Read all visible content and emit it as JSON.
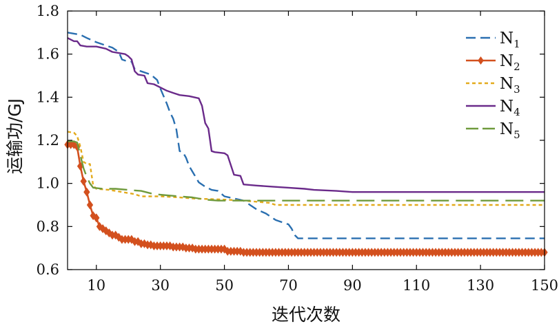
{
  "chart_data": {
    "type": "line",
    "title": "",
    "xlabel": "迭代次数",
    "ylabel": "运输功/GJ",
    "xlim": [
      1,
      150
    ],
    "ylim": [
      0.6,
      1.8
    ],
    "xticks": [
      10,
      30,
      50,
      70,
      90,
      110,
      130,
      150
    ],
    "xtick_labels": [
      "10",
      "30",
      "50",
      "70",
      "90",
      "110",
      "130",
      "150"
    ],
    "yticks": [
      0.6,
      0.8,
      1.0,
      1.2,
      1.4,
      1.6,
      1.8
    ],
    "ytick_labels": [
      "0.6",
      "0.8",
      "1.0",
      "1.2",
      "1.4",
      "1.6",
      "1.8"
    ],
    "grid": false,
    "legend_position": "top-right",
    "series": [
      {
        "name": "N1",
        "label_main": "N",
        "label_sub": "1",
        "color": "#2a6fb0",
        "dash": "14,7",
        "marker": "none",
        "points": [
          [
            1,
            1.7
          ],
          [
            3,
            1.695
          ],
          [
            5,
            1.69
          ],
          [
            7,
            1.675
          ],
          [
            10,
            1.655
          ],
          [
            13,
            1.64
          ],
          [
            15,
            1.63
          ],
          [
            17,
            1.61
          ],
          [
            18,
            1.575
          ],
          [
            19,
            1.57
          ],
          [
            21,
            1.565
          ],
          [
            22,
            1.53
          ],
          [
            24,
            1.52
          ],
          [
            27,
            1.505
          ],
          [
            29,
            1.48
          ],
          [
            30,
            1.44
          ],
          [
            32,
            1.37
          ],
          [
            33,
            1.33
          ],
          [
            34,
            1.3
          ],
          [
            35,
            1.25
          ],
          [
            36,
            1.15
          ],
          [
            37,
            1.145
          ],
          [
            38,
            1.12
          ],
          [
            39,
            1.08
          ],
          [
            41,
            1.03
          ],
          [
            42,
            1.005
          ],
          [
            44,
            0.985
          ],
          [
            46,
            0.97
          ],
          [
            48,
            0.965
          ],
          [
            50,
            0.94
          ],
          [
            53,
            0.93
          ],
          [
            56,
            0.92
          ],
          [
            58,
            0.9
          ],
          [
            60,
            0.88
          ],
          [
            63,
            0.86
          ],
          [
            66,
            0.83
          ],
          [
            68,
            0.82
          ],
          [
            70,
            0.81
          ],
          [
            71,
            0.79
          ],
          [
            72,
            0.76
          ],
          [
            73,
            0.745
          ],
          [
            150,
            0.745
          ]
        ]
      },
      {
        "name": "N2",
        "label_main": "N",
        "label_sub": "2",
        "color": "#d3501e",
        "dash": "",
        "marker": "diamond",
        "points": [
          [
            1,
            1.18
          ],
          [
            2,
            1.18
          ],
          [
            3,
            1.18
          ],
          [
            4,
            1.17
          ],
          [
            5,
            1.08
          ],
          [
            6,
            1.01
          ],
          [
            7,
            0.96
          ],
          [
            8,
            0.9
          ],
          [
            9,
            0.85
          ],
          [
            10,
            0.84
          ],
          [
            11,
            0.8
          ],
          [
            12,
            0.79
          ],
          [
            13,
            0.78
          ],
          [
            14,
            0.77
          ],
          [
            15,
            0.76
          ],
          [
            16,
            0.76
          ],
          [
            17,
            0.75
          ],
          [
            18,
            0.74
          ],
          [
            19,
            0.74
          ],
          [
            20,
            0.74
          ],
          [
            21,
            0.74
          ],
          [
            22,
            0.73
          ],
          [
            23,
            0.73
          ],
          [
            24,
            0.72
          ],
          [
            25,
            0.72
          ],
          [
            26,
            0.715
          ],
          [
            27,
            0.715
          ],
          [
            28,
            0.71
          ],
          [
            29,
            0.71
          ],
          [
            30,
            0.71
          ],
          [
            31,
            0.71
          ],
          [
            32,
            0.71
          ],
          [
            33,
            0.71
          ],
          [
            34,
            0.705
          ],
          [
            35,
            0.705
          ],
          [
            36,
            0.705
          ],
          [
            37,
            0.705
          ],
          [
            38,
            0.7
          ],
          [
            39,
            0.7
          ],
          [
            40,
            0.7
          ],
          [
            41,
            0.695
          ],
          [
            42,
            0.695
          ],
          [
            43,
            0.695
          ],
          [
            44,
            0.695
          ],
          [
            45,
            0.695
          ],
          [
            46,
            0.695
          ],
          [
            47,
            0.695
          ],
          [
            48,
            0.695
          ],
          [
            49,
            0.695
          ],
          [
            50,
            0.695
          ],
          [
            51,
            0.685
          ],
          [
            52,
            0.685
          ],
          [
            53,
            0.685
          ],
          [
            54,
            0.685
          ],
          [
            55,
            0.685
          ],
          [
            56,
            0.68
          ],
          [
            57,
            0.68
          ],
          [
            58,
            0.68
          ],
          [
            59,
            0.68
          ],
          [
            60,
            0.68
          ],
          [
            61,
            0.68
          ],
          [
            62,
            0.68
          ],
          [
            63,
            0.68
          ],
          [
            64,
            0.68
          ],
          [
            65,
            0.68
          ],
          [
            66,
            0.68
          ],
          [
            67,
            0.68
          ],
          [
            68,
            0.68
          ],
          [
            69,
            0.68
          ],
          [
            70,
            0.68
          ],
          [
            71,
            0.68
          ],
          [
            72,
            0.68
          ],
          [
            73,
            0.68
          ],
          [
            74,
            0.68
          ],
          [
            75,
            0.68
          ],
          [
            76,
            0.68
          ],
          [
            77,
            0.68
          ],
          [
            78,
            0.68
          ],
          [
            79,
            0.68
          ],
          [
            80,
            0.68
          ],
          [
            81,
            0.68
          ],
          [
            82,
            0.68
          ],
          [
            83,
            0.68
          ],
          [
            84,
            0.68
          ],
          [
            85,
            0.68
          ],
          [
            86,
            0.68
          ],
          [
            87,
            0.68
          ],
          [
            88,
            0.68
          ],
          [
            89,
            0.68
          ],
          [
            90,
            0.68
          ],
          [
            91,
            0.68
          ],
          [
            92,
            0.68
          ],
          [
            93,
            0.68
          ],
          [
            94,
            0.68
          ],
          [
            95,
            0.68
          ],
          [
            96,
            0.68
          ],
          [
            97,
            0.68
          ],
          [
            98,
            0.68
          ],
          [
            99,
            0.68
          ],
          [
            100,
            0.68
          ],
          [
            101,
            0.68
          ],
          [
            102,
            0.68
          ],
          [
            103,
            0.68
          ],
          [
            104,
            0.68
          ],
          [
            105,
            0.68
          ],
          [
            106,
            0.68
          ],
          [
            107,
            0.68
          ],
          [
            108,
            0.68
          ],
          [
            109,
            0.68
          ],
          [
            110,
            0.68
          ],
          [
            111,
            0.68
          ],
          [
            112,
            0.68
          ],
          [
            113,
            0.68
          ],
          [
            114,
            0.68
          ],
          [
            115,
            0.68
          ],
          [
            116,
            0.68
          ],
          [
            117,
            0.68
          ],
          [
            118,
            0.68
          ],
          [
            119,
            0.68
          ],
          [
            120,
            0.68
          ],
          [
            121,
            0.68
          ],
          [
            122,
            0.68
          ],
          [
            123,
            0.68
          ],
          [
            124,
            0.68
          ],
          [
            125,
            0.68
          ],
          [
            126,
            0.68
          ],
          [
            127,
            0.68
          ],
          [
            128,
            0.68
          ],
          [
            129,
            0.68
          ],
          [
            130,
            0.68
          ],
          [
            131,
            0.68
          ],
          [
            132,
            0.68
          ],
          [
            133,
            0.68
          ],
          [
            134,
            0.68
          ],
          [
            135,
            0.68
          ],
          [
            136,
            0.68
          ],
          [
            137,
            0.68
          ],
          [
            138,
            0.68
          ],
          [
            139,
            0.68
          ],
          [
            140,
            0.68
          ],
          [
            141,
            0.68
          ],
          [
            142,
            0.68
          ],
          [
            143,
            0.68
          ],
          [
            144,
            0.68
          ],
          [
            145,
            0.68
          ],
          [
            146,
            0.68
          ],
          [
            147,
            0.68
          ],
          [
            148,
            0.68
          ],
          [
            149,
            0.68
          ],
          [
            150,
            0.68
          ]
        ]
      },
      {
        "name": "N3",
        "label_main": "N",
        "label_sub": "3",
        "color": "#e3aa1c",
        "dash": "5,4",
        "marker": "none",
        "points": [
          [
            1,
            1.24
          ],
          [
            3,
            1.235
          ],
          [
            4,
            1.22
          ],
          [
            5,
            1.17
          ],
          [
            6,
            1.1
          ],
          [
            7,
            1.09
          ],
          [
            8,
            1.09
          ],
          [
            9,
            0.99
          ],
          [
            10,
            0.975
          ],
          [
            14,
            0.97
          ],
          [
            18,
            0.96
          ],
          [
            22,
            0.95
          ],
          [
            24,
            0.94
          ],
          [
            30,
            0.94
          ],
          [
            36,
            0.935
          ],
          [
            40,
            0.93
          ],
          [
            50,
            0.925
          ],
          [
            56,
            0.92
          ],
          [
            60,
            0.915
          ],
          [
            64,
            0.91
          ],
          [
            66,
            0.9
          ],
          [
            150,
            0.9
          ]
        ]
      },
      {
        "name": "N4",
        "label_main": "N",
        "label_sub": "4",
        "color": "#6a2a8a",
        "dash": "",
        "marker": "none",
        "points": [
          [
            1,
            1.675
          ],
          [
            3,
            1.66
          ],
          [
            4,
            1.66
          ],
          [
            5,
            1.64
          ],
          [
            7,
            1.635
          ],
          [
            10,
            1.635
          ],
          [
            13,
            1.625
          ],
          [
            15,
            1.61
          ],
          [
            17,
            1.605
          ],
          [
            19,
            1.6
          ],
          [
            20,
            1.59
          ],
          [
            21,
            1.575
          ],
          [
            22,
            1.52
          ],
          [
            23,
            1.505
          ],
          [
            25,
            1.5
          ],
          [
            26,
            1.465
          ],
          [
            28,
            1.46
          ],
          [
            30,
            1.445
          ],
          [
            32,
            1.43
          ],
          [
            34,
            1.42
          ],
          [
            36,
            1.41
          ],
          [
            39,
            1.405
          ],
          [
            42,
            1.395
          ],
          [
            43,
            1.36
          ],
          [
            44,
            1.28
          ],
          [
            45,
            1.255
          ],
          [
            46,
            1.15
          ],
          [
            47,
            1.145
          ],
          [
            50,
            1.14
          ],
          [
            51,
            1.13
          ],
          [
            53,
            1.04
          ],
          [
            55,
            1.035
          ],
          [
            56,
            0.995
          ],
          [
            60,
            0.99
          ],
          [
            65,
            0.985
          ],
          [
            70,
            0.98
          ],
          [
            75,
            0.975
          ],
          [
            78,
            0.97
          ],
          [
            85,
            0.965
          ],
          [
            90,
            0.96
          ],
          [
            150,
            0.96
          ]
        ]
      },
      {
        "name": "N5",
        "label_main": "N",
        "label_sub": "5",
        "color": "#6f9a3c",
        "dash": "26,10",
        "marker": "none",
        "points": [
          [
            1,
            1.195
          ],
          [
            3,
            1.195
          ],
          [
            4,
            1.19
          ],
          [
            5,
            1.13
          ],
          [
            6,
            1.07
          ],
          [
            7,
            1.03
          ],
          [
            8,
            1.0
          ],
          [
            9,
            0.98
          ],
          [
            12,
            0.975
          ],
          [
            16,
            0.975
          ],
          [
            20,
            0.97
          ],
          [
            24,
            0.965
          ],
          [
            28,
            0.95
          ],
          [
            32,
            0.945
          ],
          [
            36,
            0.94
          ],
          [
            40,
            0.935
          ],
          [
            44,
            0.925
          ],
          [
            48,
            0.92
          ],
          [
            150,
            0.92
          ]
        ]
      }
    ]
  }
}
